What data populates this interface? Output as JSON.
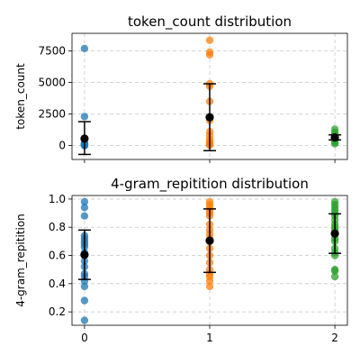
{
  "chart_data": [
    {
      "type": "scatter",
      "title": "token_count distribution",
      "xlabel": "",
      "ylabel": "token_count",
      "ylim": [
        -1100,
        8900
      ],
      "xlim": [
        -0.1,
        2.1
      ],
      "yticks": [
        0,
        2500,
        5000,
        7500
      ],
      "ytick_labels": [
        "0",
        "2500",
        "5000",
        "7500"
      ],
      "xticks": [
        0,
        1,
        2
      ],
      "xtick_labels": [
        "",
        "",
        ""
      ],
      "grid": true,
      "series": [
        {
          "x": 0,
          "values": [
            7700,
            2300,
            200,
            150,
            100,
            80,
            50,
            30,
            20,
            10,
            0
          ],
          "color": "#1f77b4"
        },
        {
          "x": 1,
          "values": [
            8350,
            7400,
            7200,
            4900,
            4700,
            3500,
            2000,
            1100,
            800,
            500,
            300,
            150,
            80,
            30
          ],
          "color": "#ff7f0e"
        },
        {
          "x": 2,
          "values": [
            1300,
            1050,
            900,
            700,
            600,
            500,
            400,
            250,
            150
          ],
          "color": "#2ca02c"
        }
      ],
      "error_bars": [
        {
          "x": 0,
          "mean": 550,
          "lower": -700,
          "upper": 1900
        },
        {
          "x": 1,
          "mean": 2250,
          "lower": -400,
          "upper": 4900
        },
        {
          "x": 2,
          "mean": 650,
          "lower": 450,
          "upper": 850
        }
      ]
    },
    {
      "type": "scatter",
      "title": "4-gram_repitition distribution",
      "xlabel": "",
      "ylabel": "4-gram_repitition",
      "ylim": [
        0.105,
        1.025
      ],
      "xlim": [
        -0.1,
        2.1
      ],
      "yticks": [
        0.2,
        0.4,
        0.6,
        0.8,
        1.0
      ],
      "ytick_labels": [
        "0.2",
        "0.4",
        "0.6",
        "0.8",
        "1.0"
      ],
      "xticks": [
        0,
        1,
        2
      ],
      "xtick_labels": [
        "0",
        "1",
        "2"
      ],
      "grid": true,
      "series": [
        {
          "x": 0,
          "values": [
            0.98,
            0.94,
            0.88,
            0.74,
            0.72,
            0.7,
            0.68,
            0.66,
            0.62,
            0.6,
            0.56,
            0.52,
            0.47,
            0.45,
            0.42,
            0.38,
            0.28,
            0.14
          ],
          "color": "#1f77b4"
        },
        {
          "x": 1,
          "values": [
            0.98,
            0.96,
            0.94,
            0.92,
            0.9,
            0.88,
            0.82,
            0.78,
            0.75,
            0.72,
            0.7,
            0.65,
            0.6,
            0.55,
            0.5,
            0.47,
            0.45,
            0.42,
            0.38
          ],
          "color": "#ff7f0e"
        },
        {
          "x": 2,
          "values": [
            0.98,
            0.96,
            0.94,
            0.92,
            0.9,
            0.88,
            0.85,
            0.82,
            0.8,
            0.78,
            0.75,
            0.72,
            0.7,
            0.65,
            0.62,
            0.6,
            0.5,
            0.49,
            0.45
          ],
          "color": "#2ca02c"
        }
      ],
      "error_bars": [
        {
          "x": 0,
          "mean": 0.605,
          "lower": 0.43,
          "upper": 0.78
        },
        {
          "x": 1,
          "mean": 0.705,
          "lower": 0.48,
          "upper": 0.93
        },
        {
          "x": 2,
          "mean": 0.755,
          "lower": 0.615,
          "upper": 0.895
        }
      ]
    }
  ]
}
